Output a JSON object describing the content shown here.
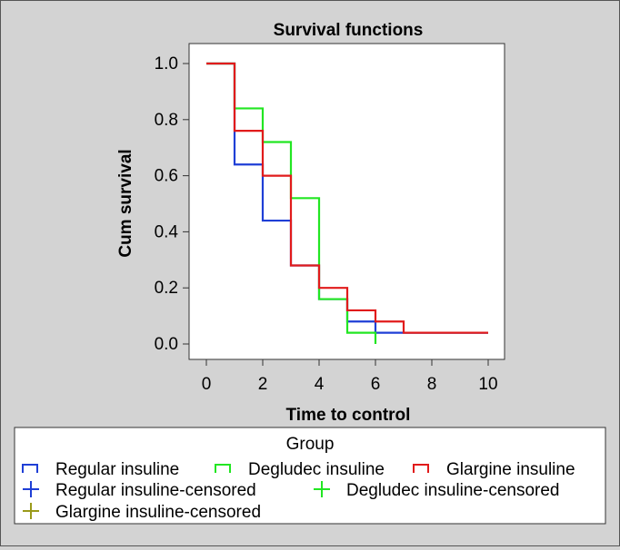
{
  "chart_data": {
    "type": "line",
    "subtype": "step (Kaplan-Meier)",
    "title": "Survival functions",
    "xlabel": "Time to control",
    "ylabel": "Cum survival",
    "xlim": [
      0,
      10
    ],
    "ylim": [
      0,
      1
    ],
    "xticks": [
      "0",
      "2",
      "4",
      "6",
      "8",
      "10"
    ],
    "yticks": [
      "0.0",
      "0.2",
      "0.4",
      "0.6",
      "0.8",
      "1.0"
    ],
    "grid": false,
    "legend_position": "bottom",
    "legend_title": "Group",
    "series": [
      {
        "name": "Regular insuline",
        "color": "#1f3fd6",
        "x": [
          0,
          1,
          2,
          3,
          4,
          5,
          6,
          7,
          10
        ],
        "y": [
          1.0,
          0.64,
          0.44,
          0.28,
          0.16,
          0.08,
          0.04,
          0.04,
          0.04
        ]
      },
      {
        "name": "Degludec insuline",
        "color": "#22e622",
        "x": [
          0,
          1,
          2,
          3,
          4,
          5,
          6
        ],
        "y": [
          1.0,
          0.84,
          0.72,
          0.52,
          0.16,
          0.04,
          0.0
        ]
      },
      {
        "name": "Glargine insuline",
        "color": "#e11b1b",
        "x": [
          0,
          1,
          2,
          3,
          4,
          5,
          6,
          7,
          10
        ],
        "y": [
          1.0,
          0.76,
          0.6,
          0.28,
          0.2,
          0.12,
          0.08,
          0.04,
          0.04
        ]
      }
    ],
    "legend": [
      {
        "label": "Regular insuline",
        "kind": "step",
        "color": "#1f3fd6",
        "icon": "step-line-icon"
      },
      {
        "label": "Degludec insuline",
        "kind": "step",
        "color": "#22e622",
        "icon": "step-line-icon"
      },
      {
        "label": "Glargine insuline",
        "kind": "step",
        "color": "#e11b1b",
        "icon": "step-line-icon"
      },
      {
        "label": "Regular insuline-censored",
        "kind": "censor",
        "color": "#1f3fd6",
        "icon": "plus-marker-icon"
      },
      {
        "label": "Degludec insuline-censored",
        "kind": "censor",
        "color": "#22e622",
        "icon": "plus-marker-icon"
      },
      {
        "label": "Glargine insuline-censored",
        "kind": "censor",
        "color": "#9a9a1a",
        "icon": "plus-marker-icon"
      }
    ]
  }
}
